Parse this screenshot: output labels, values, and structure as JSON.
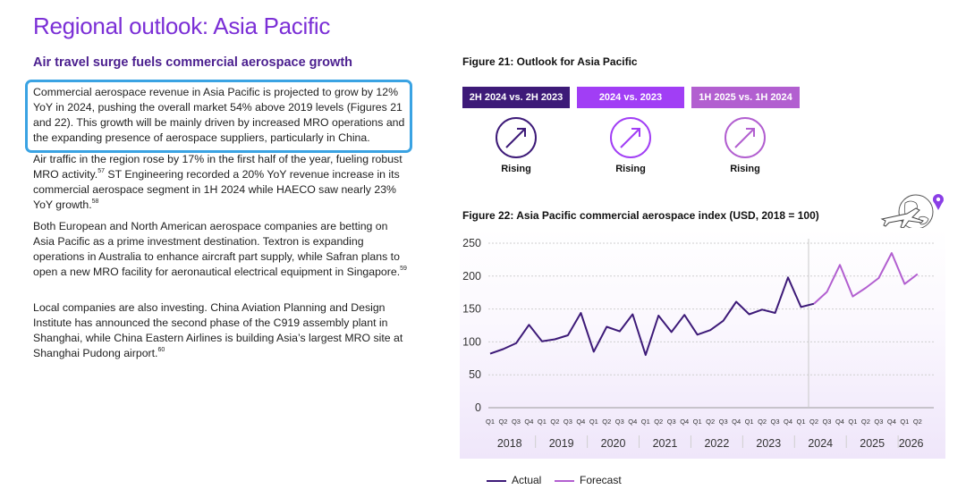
{
  "page": {
    "title": "Regional outlook: Asia Pacific",
    "subtitle": "Air travel surge fuels commercial aerospace growth"
  },
  "paragraphs": [
    {
      "text": "Commercial aerospace revenue in Asia Pacific is projected to grow by 12% YoY in 2024, pushing the overall market 54% above 2019 levels (Figures 21 and 22). This growth will be mainly driven by increased MRO operations and the expanding presence of aerospace suppliers, particularly in China.",
      "ref": ""
    },
    {
      "text": "Air traffic in the region rose by 17% in the first half of the year, fueling robust MRO activity.",
      "ref": "57",
      "text2": " ST Engineering recorded a 20% YoY revenue increase in its commercial aerospace segment in 1H 2024 while HAECO saw nearly 23% YoY growth.",
      "ref2": "58"
    },
    {
      "text": "Both European and North American aerospace companies are betting on Asia Pacific as a prime investment destination. Textron is expanding operations in Australia to enhance aircraft part supply, while Safran plans to open a new MRO facility for aeronautical electrical equipment in Singapore.",
      "ref": "59"
    },
    {
      "text": "Local companies are also investing. China Aviation Planning and Design Institute has announced the second phase of the C919 assembly plant in Shanghai, while China Eastern Airlines is building Asia’s largest MRO site at Shanghai Pudong airport.",
      "ref": "60"
    }
  ],
  "figure21": {
    "title": "Figure 21: Outlook for Asia Pacific",
    "tabs": [
      {
        "label": "2H 2024 vs. 2H 2023",
        "status": "Rising",
        "color": "#3d1a78"
      },
      {
        "label": "2024 vs. 2023",
        "status": "Rising",
        "color": "#a13ef5"
      },
      {
        "label": "1H 2025 vs. 1H 2024",
        "status": "Rising",
        "color": "#b25fd0"
      }
    ]
  },
  "figure22": {
    "title": "Figure 22: Asia Pacific commercial aerospace index (USD, 2018 = 100)"
  },
  "chart_data": {
    "type": "line",
    "ylim": [
      0,
      250
    ],
    "yticks": [
      0,
      50,
      100,
      150,
      200,
      250
    ],
    "quarters": [
      "Q1",
      "Q2",
      "Q3",
      "Q4",
      "Q1",
      "Q2",
      "Q3",
      "Q4",
      "Q1",
      "Q2",
      "Q3",
      "Q4",
      "Q1",
      "Q2",
      "Q3",
      "Q4",
      "Q1",
      "Q2",
      "Q3",
      "Q4",
      "Q1",
      "Q2",
      "Q3",
      "Q4",
      "Q1",
      "Q2",
      "Q3",
      "Q4",
      "Q1",
      "Q2",
      "Q3",
      "Q4",
      "Q1",
      "Q2"
    ],
    "years": [
      "2018",
      "2019",
      "2020",
      "2021",
      "2022",
      "2023",
      "2024",
      "2025",
      "2026"
    ],
    "grid": true,
    "series": [
      {
        "name": "Actual",
        "color": "#3d1a78",
        "values": [
          82,
          89,
          98,
          126,
          101,
          104,
          110,
          144,
          85,
          123,
          116,
          142,
          80,
          140,
          115,
          141,
          111,
          118,
          132,
          161,
          142,
          149,
          144,
          198,
          153,
          158,
          null,
          null,
          null,
          null,
          null,
          null,
          null,
          null
        ]
      },
      {
        "name": "Forecast",
        "color": "#b25fd0",
        "values": [
          null,
          null,
          null,
          null,
          null,
          null,
          null,
          null,
          null,
          null,
          null,
          null,
          null,
          null,
          null,
          null,
          null,
          null,
          null,
          null,
          null,
          null,
          null,
          null,
          null,
          158,
          176,
          217,
          169,
          182,
          197,
          235,
          188,
          203
        ]
      }
    ]
  }
}
